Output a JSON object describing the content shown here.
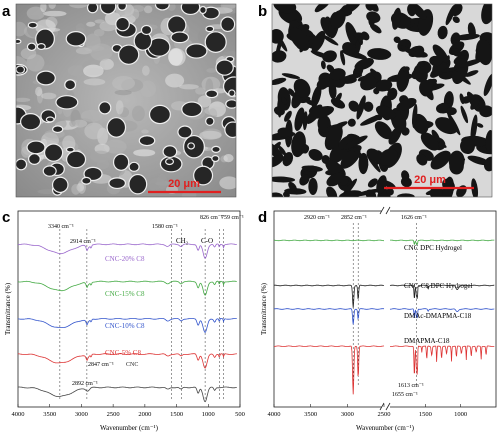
{
  "panels": {
    "a": {
      "letter": "a",
      "scale_bar": "20 μm"
    },
    "b": {
      "letter": "b",
      "scale_bar": "20 μm"
    },
    "c": {
      "letter": "c",
      "ylabel": "Transmittance (%)",
      "xlabel": "Wavenumber (cm⁻¹)",
      "xticks": [
        "4000",
        "3500",
        "3000",
        "2500",
        "2000",
        "1500",
        "1000",
        "500"
      ],
      "annotations": {
        "a3340": "3340 cm⁻¹",
        "a1580": "1580 cm⁻¹",
        "a826": "826 cm⁻¹",
        "a759": "759 cm⁻¹",
        "a2914": "2914 cm⁻¹",
        "ch2": "CH₂",
        "co": "C-O",
        "a2847": "2847 cm⁻¹",
        "a2892": "2892 cm⁻¹"
      }
    },
    "d": {
      "letter": "d",
      "ylabel": "Transmittance (%)",
      "xlabel": "Wavenumber (cm⁻¹)",
      "xticks": [
        "4000",
        "3500",
        "3000",
        "2500",
        "1500",
        "1000"
      ],
      "annotations": {
        "a2920": "2920 cm⁻¹",
        "a2852": "2852 cm⁻¹",
        "a1626": "1626 cm⁻¹",
        "a1613": "1613 cm⁻¹",
        "a1655": "1655 cm⁻¹"
      }
    }
  },
  "chart_data": [
    {
      "type": "line",
      "panel": "c",
      "xlabel": "Wavenumber (cm⁻¹)",
      "ylabel": "Transmittance (%)",
      "xlim": [
        4000,
        500
      ],
      "reference_lines": [
        3340,
        2914,
        1580,
        1420,
        1050,
        826,
        759
      ],
      "series": [
        {
          "name": "CNC-20% C8",
          "color": "#9966cc",
          "offset": 0.83
        },
        {
          "name": "CNC-15% C8",
          "color": "#44aa44",
          "offset": 0.64
        },
        {
          "name": "CNC-10% C8",
          "color": "#3355cc",
          "offset": 0.45
        },
        {
          "name": "CNC-5% C8",
          "color": "#dd3333",
          "offset": 0.27
        },
        {
          "name": "CNC",
          "color": "#444444",
          "offset": 0.1
        }
      ]
    },
    {
      "type": "line",
      "panel": "d",
      "xlabel": "Wavenumber (cm⁻¹)",
      "ylabel": "Transmittance (%)",
      "xlim": [
        4000,
        500
      ],
      "axis_break": [
        2500,
        2000
      ],
      "reference_lines": [
        2920,
        2852,
        1626
      ],
      "series": [
        {
          "name": "CNC DPC Hydrogel",
          "color": "#44aa44",
          "offset": 0.85
        },
        {
          "name": "CNC-C8 DPC Hydrogel",
          "color": "#222222",
          "offset": 0.62
        },
        {
          "name": "DMAc-DMAPMA-C18",
          "color": "#3355cc",
          "offset": 0.5
        },
        {
          "name": "DMAPMA-C18",
          "color": "#dd3333",
          "offset": 0.31
        }
      ]
    }
  ]
}
